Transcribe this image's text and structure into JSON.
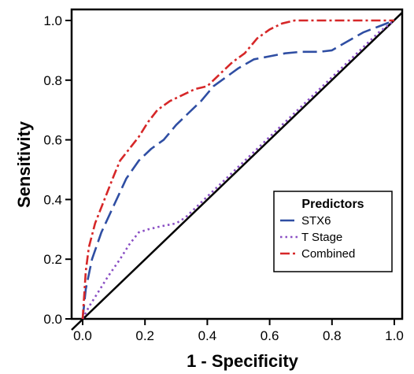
{
  "chart_data": {
    "type": "line",
    "xlabel": "1 - Specificity",
    "ylabel": "Sensitivity",
    "xlim": [
      0,
      1.0
    ],
    "ylim": [
      0,
      1.0
    ],
    "xticks": [
      "0.0",
      "0.2",
      "0.4",
      "0.6",
      "0.8",
      "1.0"
    ],
    "yticks": [
      "0.0",
      "0.2",
      "0.4",
      "0.6",
      "0.8",
      "1.0"
    ],
    "grid": false,
    "legend": {
      "title": "Predictors",
      "placement": "bottom-right"
    },
    "reference_line": {
      "x": [
        0,
        1
      ],
      "y": [
        0,
        1
      ],
      "color": "#000000"
    },
    "series": [
      {
        "name": "STX6",
        "color": "#2f4ea3",
        "dash": "long-dash",
        "x": [
          0.0,
          0.01,
          0.03,
          0.06,
          0.1,
          0.14,
          0.18,
          0.22,
          0.26,
          0.3,
          0.34,
          0.38,
          0.42,
          0.46,
          0.5,
          0.55,
          0.6,
          0.65,
          0.7,
          0.76,
          0.8,
          0.85,
          0.9,
          0.95,
          1.0
        ],
        "y": [
          0.0,
          0.1,
          0.2,
          0.29,
          0.38,
          0.47,
          0.53,
          0.57,
          0.6,
          0.65,
          0.69,
          0.73,
          0.78,
          0.81,
          0.84,
          0.87,
          0.88,
          0.89,
          0.895,
          0.895,
          0.9,
          0.93,
          0.96,
          0.98,
          1.0
        ]
      },
      {
        "name": "T Stage",
        "color": "#8a4fc4",
        "dash": "dotted",
        "x": [
          0.0,
          0.02,
          0.05,
          0.08,
          0.12,
          0.15,
          0.18,
          0.21,
          0.25,
          0.3,
          0.33,
          0.36,
          0.4,
          0.45,
          0.5,
          0.55,
          0.6,
          0.65,
          0.7,
          0.75,
          0.8,
          0.85,
          0.9,
          0.95,
          1.0
        ],
        "y": [
          0.0,
          0.04,
          0.09,
          0.14,
          0.2,
          0.25,
          0.29,
          0.3,
          0.31,
          0.32,
          0.34,
          0.37,
          0.41,
          0.46,
          0.51,
          0.56,
          0.61,
          0.66,
          0.71,
          0.76,
          0.81,
          0.86,
          0.91,
          0.96,
          1.0
        ]
      },
      {
        "name": "Combined",
        "color": "#d62728",
        "dash": "dash-dot",
        "x": [
          0.0,
          0.01,
          0.02,
          0.04,
          0.07,
          0.1,
          0.12,
          0.15,
          0.18,
          0.21,
          0.24,
          0.28,
          0.32,
          0.36,
          0.4,
          0.44,
          0.48,
          0.52,
          0.56,
          0.6,
          0.64,
          0.68,
          0.72,
          0.78,
          0.85,
          0.92,
          1.0
        ],
        "y": [
          0.0,
          0.16,
          0.24,
          0.32,
          0.4,
          0.48,
          0.53,
          0.57,
          0.61,
          0.66,
          0.7,
          0.73,
          0.75,
          0.77,
          0.78,
          0.82,
          0.86,
          0.89,
          0.94,
          0.97,
          0.99,
          1.0,
          1.0,
          1.0,
          1.0,
          1.0,
          1.0
        ]
      }
    ]
  }
}
